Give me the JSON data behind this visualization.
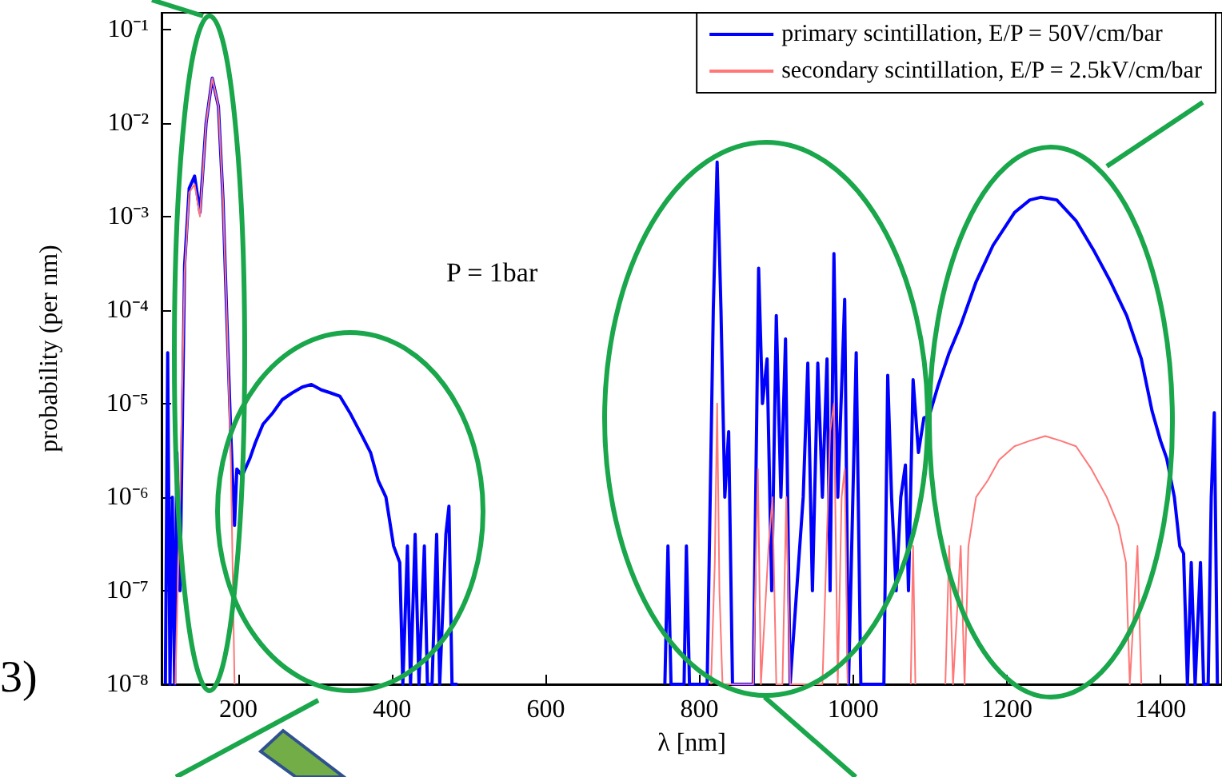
{
  "chart_data": {
    "type": "line",
    "xlabel": "λ [nm]",
    "ylabel": "probability (per nm)",
    "annotations": [
      "P = 1bar",
      "3)"
    ],
    "xlim": [
      100,
      1480
    ],
    "xticks": [
      200,
      400,
      600,
      800,
      1000,
      1200,
      1400
    ],
    "ylim": [
      1e-08,
      0.15
    ],
    "log": "y",
    "yticks": [
      {
        "value": 1e-08,
        "label": "10⁻⁸"
      },
      {
        "value": 1e-07,
        "label": "10⁻⁷"
      },
      {
        "value": 1e-06,
        "label": "10⁻⁶"
      },
      {
        "value": 1e-05,
        "label": "10⁻⁵"
      },
      {
        "value": 0.0001,
        "label": "10⁻⁴"
      },
      {
        "value": 0.001,
        "label": "10⁻³"
      },
      {
        "value": 0.01,
        "label": "10⁻²"
      },
      {
        "value": 0.1,
        "label": "10⁻¹"
      }
    ],
    "grid": false,
    "legend": "top right",
    "marker": "none",
    "line_style": "solid",
    "series": [
      {
        "name": "primary scintillation, E/P = 50V/cm/bar",
        "color": "#0000ff",
        "x": [
          105,
          108,
          111,
          114,
          117,
          120,
          124,
          130,
          136,
          143,
          150,
          158,
          166,
          174,
          180,
          185,
          190,
          195,
          198,
          205,
          215,
          222,
          232,
          245,
          257,
          270,
          283,
          295,
          308,
          320,
          332,
          345,
          361,
          372,
          382,
          392,
          402,
          410,
          414,
          420,
          424,
          430,
          435,
          442,
          446,
          452,
          458,
          462,
          470,
          474,
          478,
          485,
          490,
          755,
          759,
          763,
          780,
          783,
          787,
          810,
          818,
          823,
          828,
          833,
          838,
          843,
          870,
          877,
          882,
          888,
          894,
          900,
          906,
          912,
          918,
          935,
          941,
          947,
          954,
          960,
          966,
          970,
          975,
          980,
          989,
          994,
          1004,
          1010,
          1040,
          1045,
          1050,
          1056,
          1062,
          1068,
          1072,
          1078,
          1085,
          1092,
          1099,
          1110,
          1125,
          1140,
          1160,
          1182,
          1210,
          1230,
          1244,
          1265,
          1290,
          1314,
          1335,
          1356,
          1375,
          1389,
          1400,
          1408,
          1418,
          1425,
          1430,
          1435,
          1440,
          1445,
          1452,
          1456,
          1462,
          1466,
          1470,
          1474
        ],
        "values": [
          1e-08,
          3.5e-05,
          1e-08,
          1e-06,
          1e-08,
          3e-06,
          1e-07,
          0.0003,
          0.002,
          0.0027,
          0.0011,
          0.01,
          0.03,
          0.015,
          0.0015,
          8e-05,
          5e-06,
          5e-07,
          2e-06,
          1.7e-06,
          2.6e-06,
          3.8e-06,
          6e-06,
          8e-06,
          1.1e-05,
          1.3e-05,
          1.5e-05,
          1.6e-05,
          1.4e-05,
          1.3e-05,
          1.2e-05,
          8e-06,
          4.5e-06,
          3e-06,
          1.5e-06,
          1e-06,
          3e-07,
          2e-07,
          1e-08,
          3e-07,
          1e-08,
          4e-07,
          1e-08,
          3e-07,
          1e-08,
          1e-08,
          4e-07,
          1e-08,
          4e-07,
          8e-07,
          1e-08,
          1e-08,
          null,
          1e-08,
          3e-07,
          1e-08,
          1e-08,
          3e-07,
          1e-08,
          1e-08,
          0.0001,
          0.0038,
          0.0001,
          1e-06,
          5e-06,
          1e-08,
          1e-08,
          0.00028,
          1e-05,
          3e-05,
          1e-07,
          8.7e-05,
          1e-06,
          4.9e-05,
          1e-08,
          1e-06,
          2.7e-05,
          1e-07,
          2.7e-05,
          1e-06,
          3e-05,
          1e-07,
          0.0004,
          1e-06,
          0.00013,
          1e-08,
          3.5e-05,
          1e-08,
          1e-08,
          2e-05,
          1e-06,
          1e-07,
          1e-06,
          2.2e-06,
          1e-07,
          1.8e-05,
          3e-06,
          7e-06,
          7.4e-06,
          1.5e-05,
          3.5e-05,
          6.9e-05,
          0.0002,
          0.00049,
          0.0011,
          0.0015,
          0.0016,
          0.0015,
          0.0009,
          0.00042,
          0.0002,
          8.7e-05,
          3e-05,
          8.3e-06,
          4e-06,
          2.6e-06,
          1e-06,
          3e-07,
          2.5e-07,
          1e-08,
          2e-07,
          1e-08,
          2e-07,
          1e-08,
          1e-08,
          1e-06,
          8e-06,
          1e-08
        ]
      },
      {
        "name": "secondary scintillation, E/P = 2.5kV/cm/bar",
        "color": "#ff7777",
        "x": [
          118,
          124,
          130,
          136,
          143,
          150,
          158,
          166,
          174,
          180,
          185,
          190,
          195,
          200,
          815,
          820,
          823,
          826,
          830,
          870,
          876,
          880,
          890,
          895,
          900,
          908,
          913,
          918,
          960,
          970,
          975,
          980,
          985,
          989,
          993,
          1000,
          1075,
          1078,
          1081,
          1090,
          1120,
          1125,
          1130,
          1140,
          1145,
          1150,
          1160,
          1175,
          1190,
          1210,
          1230,
          1250,
          1270,
          1290,
          1310,
          1330,
          1345,
          1355,
          1360,
          1370,
          1375
        ],
        "values": [
          1e-08,
          1e-06,
          0.00025,
          0.0018,
          0.0022,
          0.001,
          0.01,
          0.03,
          0.015,
          0.0015,
          8e-05,
          3e-06,
          1e-08,
          null,
          1e-08,
          2e-07,
          1e-05,
          1e-07,
          1e-08,
          1e-08,
          2e-06,
          1e-08,
          3e-07,
          1e-06,
          1e-08,
          1e-08,
          1e-06,
          1e-08,
          1e-08,
          5e-06,
          1e-05,
          1e-08,
          1e-06,
          2e-06,
          1e-08,
          null,
          1e-08,
          3e-07,
          1e-08,
          null,
          1e-08,
          3e-07,
          1e-08,
          3e-07,
          1e-08,
          3e-07,
          1e-06,
          1.5e-06,
          2.5e-06,
          3.5e-06,
          4e-06,
          4.5e-06,
          4e-06,
          3.5e-06,
          2e-06,
          1e-06,
          5e-07,
          2e-07,
          1e-08,
          3e-07,
          1e-08
        ]
      }
    ]
  }
}
